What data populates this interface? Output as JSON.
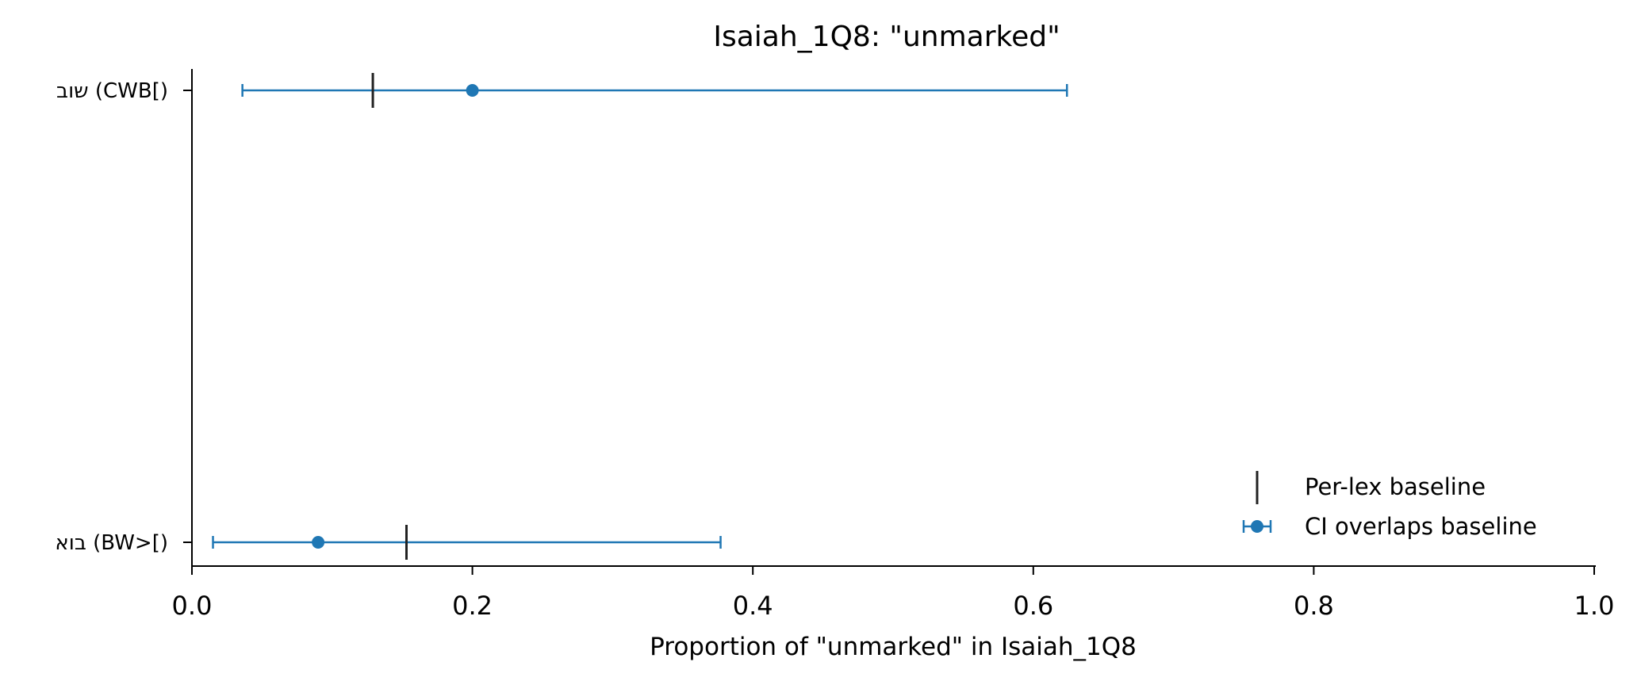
{
  "chart_data": {
    "type": "scatter",
    "title": "Isaiah_1Q8: \"unmarked\"",
    "xlabel": "Proportion of \"unmarked\" in Isaiah_1Q8",
    "ylabel": "",
    "xlim": [
      0.0,
      1.0
    ],
    "xticks": [
      "0.0",
      "0.2",
      "0.4",
      "0.6",
      "0.8",
      "1.0"
    ],
    "grid": false,
    "legend_position": "bottom-right",
    "categories": [
      "שוב (CWB[)",
      "בוא (BW>[)"
    ],
    "series": [
      {
        "name": "CI overlaps baseline",
        "color": "#1f77b4",
        "values": [
          0.2,
          0.09
        ],
        "ci_low": [
          0.036,
          0.015
        ],
        "ci_high": [
          0.624,
          0.377
        ]
      },
      {
        "name": "Per-lex baseline",
        "color": "#222222",
        "values": [
          0.129,
          0.153
        ]
      }
    ]
  }
}
